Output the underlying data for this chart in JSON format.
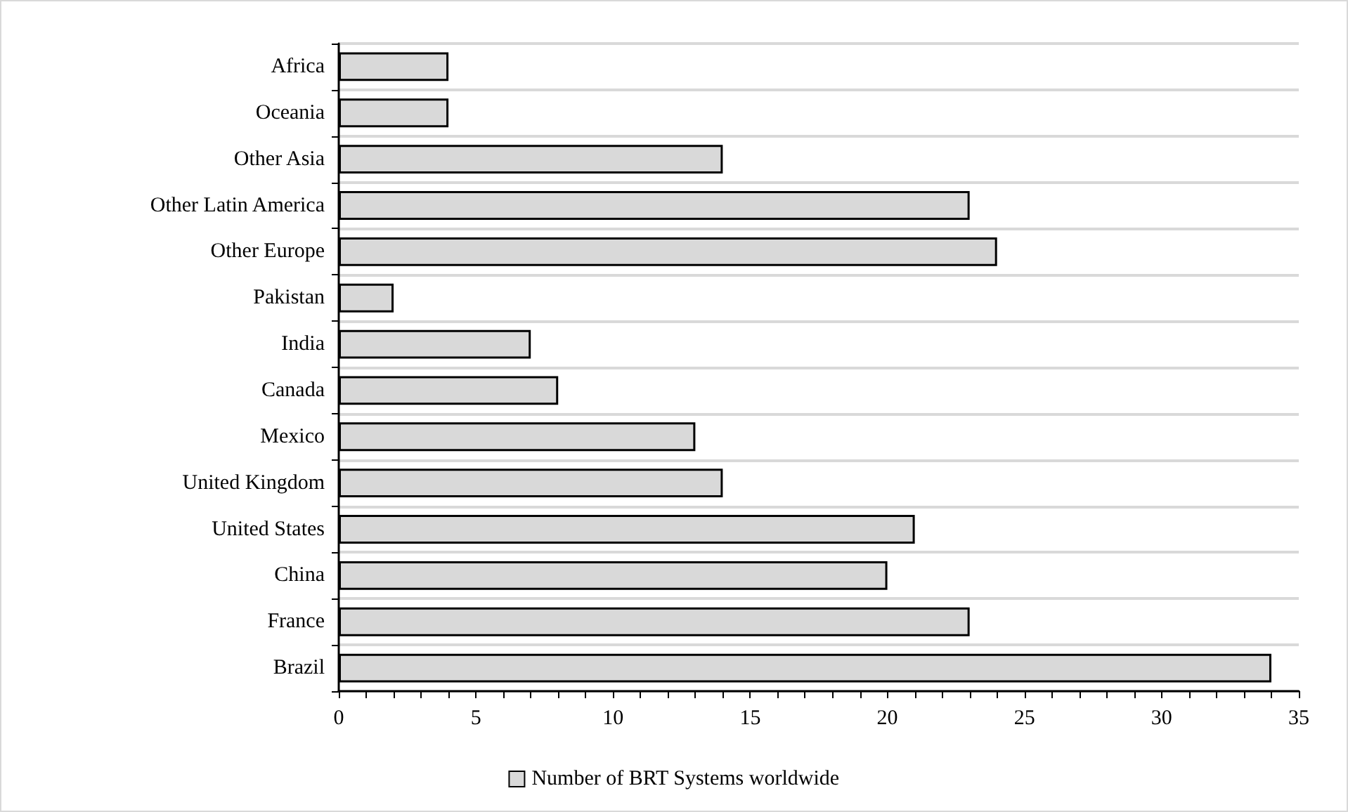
{
  "chart_data": {
    "type": "bar",
    "orientation": "horizontal",
    "categories": [
      "Africa",
      "Oceania",
      "Other Asia",
      "Other Latin America",
      "Other Europe",
      "Pakistan",
      "India",
      "Canada",
      "Mexico",
      "United Kingdom",
      "United States",
      "China",
      "France",
      "Brazil"
    ],
    "series": [
      {
        "name": "Number of BRT Systems worldwide",
        "color": "#d9d9d9",
        "values": [
          4,
          4,
          14,
          23,
          24,
          2,
          7,
          8,
          13,
          14,
          21,
          20,
          23,
          34
        ]
      }
    ],
    "xlim": [
      0,
      35
    ],
    "xticks": [
      0,
      {
        "value": 1,
        "label": null
      },
      {
        "value": 2,
        "label": null
      },
      {
        "value": 3,
        "label": null
      },
      {
        "value": 4,
        "label": null
      },
      5,
      {
        "value": 6,
        "label": null
      },
      {
        "value": 7,
        "label": null
      },
      {
        "value": 8,
        "label": null
      },
      {
        "value": 9,
        "label": null
      },
      10,
      {
        "value": 11,
        "label": null
      },
      {
        "value": 12,
        "label": null
      },
      {
        "value": 13,
        "label": null
      },
      {
        "value": 14,
        "label": null
      },
      15,
      {
        "value": 16,
        "label": null
      },
      {
        "value": 17,
        "label": null
      },
      {
        "value": 18,
        "label": null
      },
      {
        "value": 19,
        "label": null
      },
      20,
      {
        "value": 21,
        "label": null
      },
      {
        "value": 22,
        "label": null
      },
      {
        "value": 23,
        "label": null
      },
      {
        "value": 24,
        "label": null
      },
      25,
      {
        "value": 26,
        "label": null
      },
      {
        "value": 27,
        "label": null
      },
      {
        "value": 28,
        "label": null
      },
      {
        "value": 29,
        "label": null
      },
      30,
      {
        "value": 31,
        "label": null
      },
      {
        "value": 32,
        "label": null
      },
      {
        "value": 33,
        "label": null
      },
      {
        "value": 34,
        "label": null
      },
      35
    ],
    "grid": "y",
    "legend": "bottom"
  }
}
